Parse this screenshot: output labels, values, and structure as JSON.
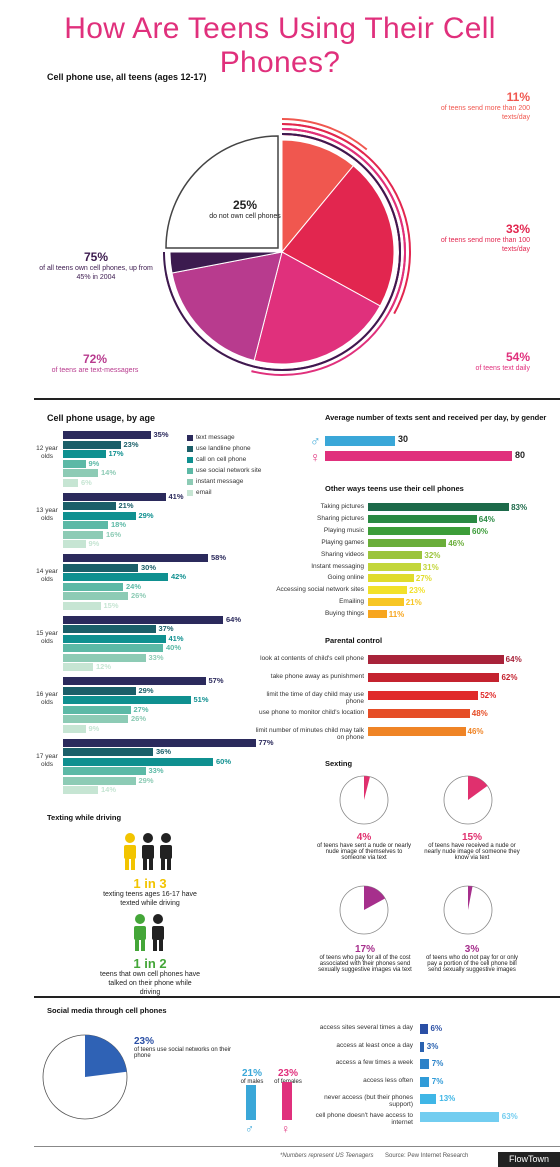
{
  "title": "How Are Teens Using Their Cell Phones?",
  "pie_section": {
    "heading": "Cell phone use, all teens (ages 12-17)",
    "labels": [
      {
        "pct": "25%",
        "text": "do not own cell phones"
      },
      {
        "pct": "11%",
        "text": "of teens send more than 200 texts/day"
      },
      {
        "pct": "33%",
        "text": "of teens send more than 100 texts/day"
      },
      {
        "pct": "54%",
        "text": "of teens text daily"
      },
      {
        "pct": "72%",
        "text": "of teens are text-messagers"
      },
      {
        "pct": "75%",
        "text": "of all teens own cell phones, up from 45% in 2004"
      }
    ],
    "colors": {
      "red": "#f0574f",
      "crimson": "#e2264f",
      "pink": "#e0307c",
      "magenta": "#b83b8e",
      "purple": "#3c1b4f"
    }
  },
  "by_age": {
    "heading": "Cell phone usage, by age",
    "legend": [
      "text message",
      "use landline phone",
      "call on cell phone",
      "use social network site",
      "instant message",
      "email"
    ],
    "colors": [
      "#2b2a5c",
      "#1b5f69",
      "#0f9090",
      "#5cb9a6",
      "#8dcbb5",
      "#c6e5d3"
    ],
    "groups": [
      {
        "label": "12 year olds",
        "values": [
          "35%",
          "23%",
          "17%",
          "9%",
          "14%",
          "6%"
        ]
      },
      {
        "label": "13 year olds",
        "values": [
          "41%",
          "21%",
          "29%",
          "18%",
          "16%",
          "9%"
        ]
      },
      {
        "label": "14 year olds",
        "values": [
          "58%",
          "30%",
          "42%",
          "24%",
          "26%",
          "15%"
        ]
      },
      {
        "label": "15 year olds",
        "values": [
          "64%",
          "37%",
          "41%",
          "40%",
          "33%",
          "12%"
        ]
      },
      {
        "label": "16 year olds",
        "values": [
          "57%",
          "29%",
          "51%",
          "27%",
          "26%",
          "9%"
        ]
      },
      {
        "label": "17 year olds",
        "values": [
          "77%",
          "36%",
          "60%",
          "33%",
          "29%",
          "14%"
        ]
      }
    ]
  },
  "gender_texts": {
    "heading": "Average number of texts sent and received per day, by gender",
    "male_icon": "male-icon",
    "female_icon": "female-icon",
    "male": "30",
    "female": "80"
  },
  "other_ways": {
    "heading": "Other ways teens use their cell phones",
    "items": [
      {
        "label": "Taking pictures",
        "value": "83%",
        "color": "#1d6a4a"
      },
      {
        "label": "Sharing pictures",
        "value": "64%",
        "color": "#2a8a43"
      },
      {
        "label": "Playing music",
        "value": "60%",
        "color": "#3c9d39"
      },
      {
        "label": "Playing games",
        "value": "46%",
        "color": "#6aae3a"
      },
      {
        "label": "Sharing videos",
        "value": "32%",
        "color": "#9bc43c"
      },
      {
        "label": "Instant messaging",
        "value": "31%",
        "color": "#c3d63a"
      },
      {
        "label": "Going online",
        "value": "27%",
        "color": "#e0dc2c"
      },
      {
        "label": "Accessing social network sites",
        "value": "23%",
        "color": "#f2e12a"
      },
      {
        "label": "Emailing",
        "value": "21%",
        "color": "#f7c624"
      },
      {
        "label": "Buying things",
        "value": "11%",
        "color": "#f7a51e"
      }
    ]
  },
  "parental": {
    "heading": "Parental control",
    "items": [
      {
        "label": "look at contents of child's cell phone",
        "value": "64%",
        "color": "#a8233a"
      },
      {
        "label": "take phone away as punishment",
        "value": "62%",
        "color": "#c4232f"
      },
      {
        "label": "limit the time of day child may use phone",
        "value": "52%",
        "color": "#e02a2a"
      },
      {
        "label": "use phone to monitor child's location",
        "value": "48%",
        "color": "#e64d26"
      },
      {
        "label": "limit number of minutes child may talk on phone",
        "value": "46%",
        "color": "#ef8426"
      }
    ]
  },
  "sexting": {
    "heading": "Sexting",
    "items": [
      {
        "pct": "4%",
        "text": "of teens have sent a nude or nearly nude image of themselves to someone via text",
        "value": 4,
        "color": "#e0306e"
      },
      {
        "pct": "15%",
        "text": "of teens have received a nude or nearly nude image of someone they know via text",
        "value": 15,
        "color": "#e0306e"
      },
      {
        "pct": "17%",
        "text": "of teens who pay for all of the cost associated with their phones send sexually suggestive images via text",
        "value": 17,
        "color": "#a62f8c"
      },
      {
        "pct": "3%",
        "text": "of teens who do not pay for or only pay a portion of the cell phone bill send sexually suggestive images",
        "value": 3,
        "color": "#a62f8c"
      }
    ]
  },
  "driving": {
    "heading": "Texting while driving",
    "a_ratio": "1 in 3",
    "a_text": "texting teens ages 16-17 have texted while driving",
    "b_ratio": "1 in 2",
    "b_text": "teens that own cell phones have talked on their phone while driving",
    "colors": {
      "yellow": "#f2c400",
      "green": "#44a638",
      "dark": "#222"
    }
  },
  "social": {
    "heading": "Social media through cell phones",
    "pie_pct": "23%",
    "pie_text": "of teens use social networks on their phone",
    "males_pct": "21%",
    "males_label": "of males",
    "females_pct": "23%",
    "females_label": "of females",
    "male_color": "#3aa7d8",
    "female_color": "#e0307c",
    "access": [
      {
        "label": "access sites several times a day",
        "value": "6%"
      },
      {
        "label": "access at least once a day",
        "value": "3%"
      },
      {
        "label": "access a few times a week",
        "value": "7%"
      },
      {
        "label": "access less often",
        "value": "7%"
      },
      {
        "label": "never access (but their phones support)",
        "value": "13%"
      },
      {
        "label": "cell phone doesn't have access to internet",
        "value": "63%"
      }
    ],
    "access_colors": [
      "#2a4fa5",
      "#2a62b0",
      "#2c82c8",
      "#2f9bd8",
      "#3fb6e6",
      "#72cdf0"
    ]
  },
  "footer": {
    "note": "*Numbers represent US Teenagers",
    "source": "Source: Pew Internet Research",
    "brand": "FlowTown"
  },
  "chart_data": [
    {
      "type": "pie",
      "title": "Cell phone use, all teens (ages 12-17)",
      "categories": [
        "do not own cell phones",
        "own cell phones"
      ],
      "values": [
        25,
        75
      ],
      "annotations": [
        {
          "label": "send more than 200 texts/day",
          "value": 11
        },
        {
          "label": "send more than 100 texts/day",
          "value": 33
        },
        {
          "label": "text daily",
          "value": 54
        },
        {
          "label": "text-messagers",
          "value": 72
        }
      ]
    },
    {
      "type": "bar",
      "title": "Cell phone usage, by age",
      "categories": [
        "12",
        "13",
        "14",
        "15",
        "16",
        "17"
      ],
      "series": [
        {
          "name": "text message",
          "values": [
            35,
            41,
            58,
            64,
            57,
            77
          ]
        },
        {
          "name": "use landline phone",
          "values": [
            23,
            21,
            30,
            37,
            29,
            36
          ]
        },
        {
          "name": "call on cell phone",
          "values": [
            17,
            29,
            42,
            41,
            51,
            60
          ]
        },
        {
          "name": "use social network site",
          "values": [
            9,
            18,
            24,
            40,
            27,
            33
          ]
        },
        {
          "name": "instant message",
          "values": [
            14,
            16,
            26,
            33,
            26,
            29
          ]
        },
        {
          "name": "email",
          "values": [
            6,
            9,
            15,
            12,
            9,
            14
          ]
        }
      ]
    },
    {
      "type": "bar",
      "title": "Average number of texts sent and received per day, by gender",
      "categories": [
        "male",
        "female"
      ],
      "values": [
        30,
        80
      ]
    },
    {
      "type": "bar",
      "title": "Other ways teens use their cell phones",
      "categories": [
        "Taking pictures",
        "Sharing pictures",
        "Playing music",
        "Playing games",
        "Sharing videos",
        "Instant messaging",
        "Going online",
        "Accessing social network sites",
        "Emailing",
        "Buying things"
      ],
      "values": [
        83,
        64,
        60,
        46,
        32,
        31,
        27,
        23,
        21,
        11
      ]
    },
    {
      "type": "bar",
      "title": "Parental control",
      "categories": [
        "look at contents of child's cell phone",
        "take phone away as punishment",
        "limit the time of day child may use phone",
        "use phone to monitor child's location",
        "limit number of minutes child may talk on phone"
      ],
      "values": [
        64,
        62,
        52,
        48,
        46
      ]
    },
    {
      "type": "pie",
      "title": "Sexting",
      "categories": [
        "sent",
        "received",
        "pay all cost send",
        "do not pay send"
      ],
      "values": [
        4,
        15,
        17,
        3
      ]
    },
    {
      "type": "pie",
      "title": "Social media through cell phones",
      "categories": [
        "use social networks on phone",
        "other"
      ],
      "values": [
        23,
        77
      ]
    },
    {
      "type": "bar",
      "categories": [
        "of males",
        "of females"
      ],
      "values": [
        21,
        23
      ]
    },
    {
      "type": "bar",
      "categories": [
        "access sites several times a day",
        "access at least once a day",
        "access a few times a week",
        "access less often",
        "never access (but their phones support)",
        "cell phone doesn't have access to internet"
      ],
      "values": [
        6,
        3,
        7,
        7,
        13,
        63
      ]
    }
  ]
}
